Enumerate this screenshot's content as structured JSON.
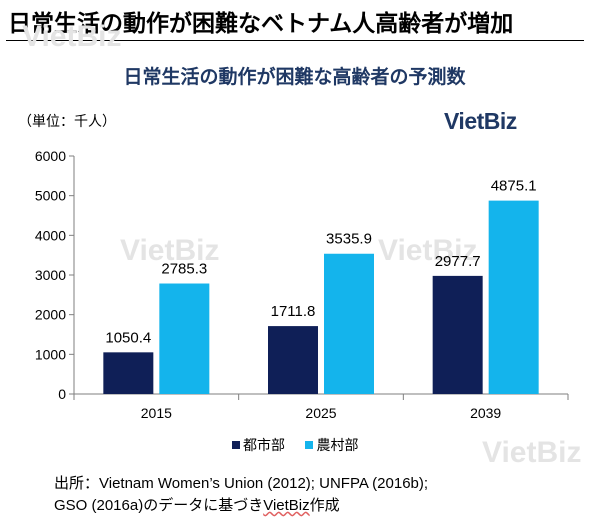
{
  "headline": "日常生活の動作が困難なベトナム人高齢者が増加",
  "watermark": "VietBiz",
  "logo": "VietBiz",
  "source": {
    "line1": "出所：Vietnam Women’s Union (2012); UNFPA (2016b);",
    "line2_prefix": "GSO (2016a)のデータに基づき",
    "line2_brand": "VietBiz",
    "line2_suffix": "作成"
  },
  "colors": {
    "urban": "#0f1f57",
    "rural": "#14b4ec",
    "title": "#1f3864"
  },
  "chart_data": {
    "type": "bar",
    "title": "日常生活の動作が困難な高齢者の予測数",
    "unit_label": "（単位：千人）",
    "categories": [
      "2015",
      "2025",
      "2039"
    ],
    "series": [
      {
        "name": "都市部",
        "values": [
          1050.4,
          1711.8,
          2977.7
        ],
        "labels": [
          "1050.4",
          "1711.8",
          "2977.7"
        ]
      },
      {
        "name": "農村部",
        "values": [
          2785.3,
          3535.9,
          4875.1
        ],
        "labels": [
          "2785.3",
          "3535.9",
          "4875.1"
        ]
      }
    ],
    "ylim": [
      0,
      6000
    ],
    "yticks": [
      "0",
      "1000",
      "2000",
      "3000",
      "4000",
      "5000",
      "6000"
    ],
    "grid": false,
    "legend_position": "bottom"
  }
}
